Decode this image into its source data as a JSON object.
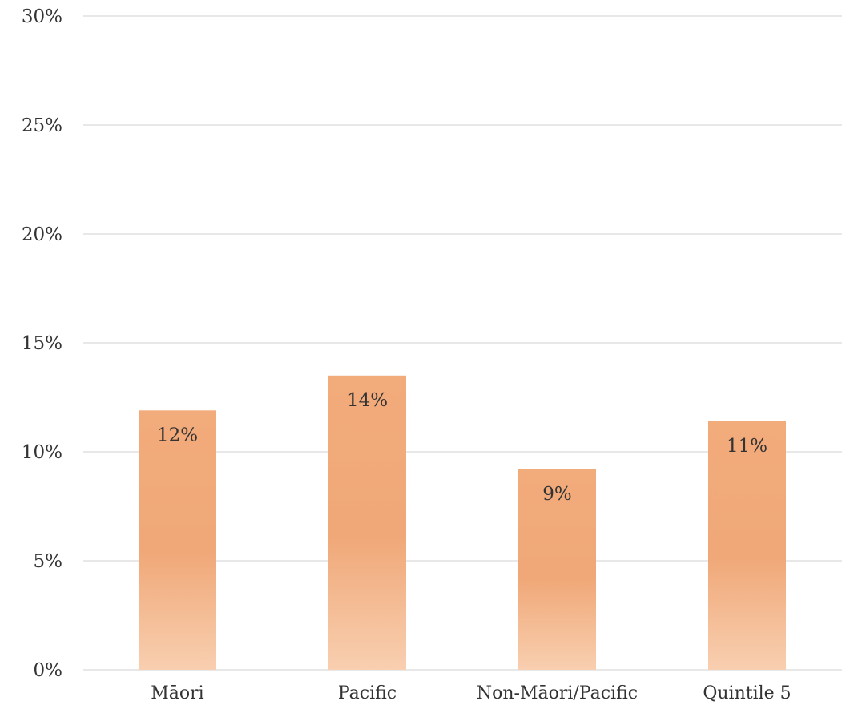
{
  "chart_data": {
    "type": "bar",
    "title": "",
    "xlabel": "",
    "ylabel": "",
    "categories": [
      "Māori",
      "Pacific",
      "Non-Māori/Pacific",
      "Quintile 5"
    ],
    "values": [
      11.9,
      13.5,
      9.2,
      11.4
    ],
    "data_labels": [
      "12%",
      "14%",
      "9%",
      "11%"
    ],
    "ylim": [
      0,
      30
    ],
    "y_ticks": [
      0,
      5,
      10,
      15,
      20,
      25,
      30
    ],
    "y_tick_labels": [
      "0%",
      "5%",
      "10%",
      "15%",
      "20%",
      "25%",
      "30%"
    ],
    "grid": true,
    "legend": "none",
    "colors": {
      "bar_top": "#f2ab7a",
      "bar_mid": "#f0a878",
      "bar_bottom": "#f8cfb0",
      "grid": "#d9d9d9",
      "text": "#333333"
    }
  }
}
